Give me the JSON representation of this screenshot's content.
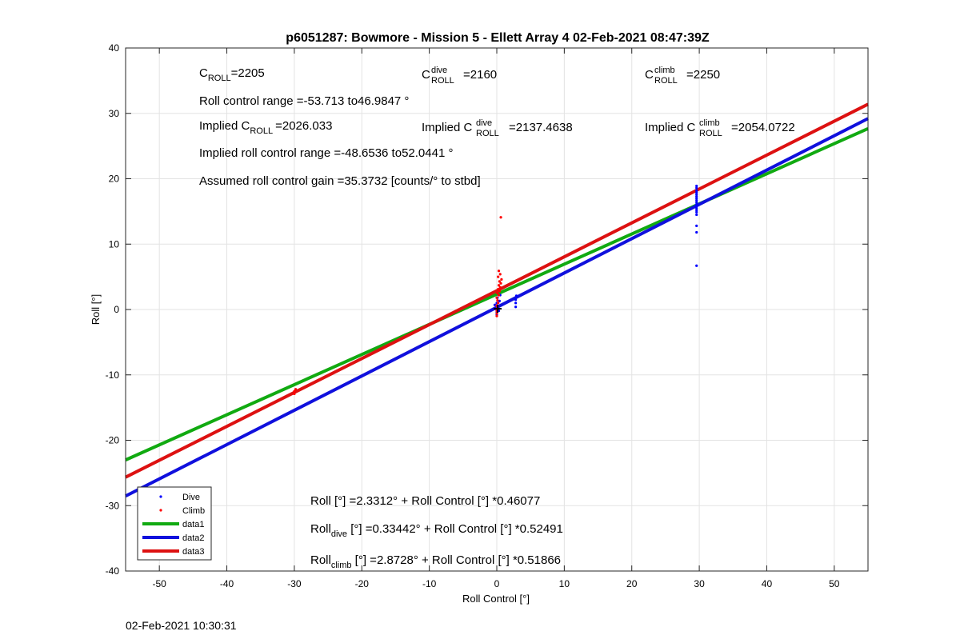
{
  "chart_data": {
    "type": "scatter",
    "title": "p6051287: Bowmore - Mission 5 - Ellett Array 4 02-Feb-2021 08:47:39Z",
    "xlabel": "Roll Control [°]",
    "ylabel": "Roll [°]",
    "xlim": [
      -55,
      55
    ],
    "ylim": [
      -40,
      40
    ],
    "xticks": [
      -50,
      -40,
      -30,
      -20,
      -10,
      0,
      10,
      20,
      30,
      40,
      50
    ],
    "yticks": [
      -40,
      -30,
      -20,
      -10,
      0,
      10,
      20,
      30,
      40
    ],
    "grid": true,
    "legend_position": "bottom-left",
    "legend": [
      "Dive",
      "Climb",
      "data1",
      "data2",
      "data3"
    ],
    "scatter_series": [
      {
        "name": "Dive",
        "color": "#0000ff",
        "points": [
          [
            0,
            -0.8
          ],
          [
            0,
            -0.4
          ],
          [
            0,
            0
          ],
          [
            0,
            0.3
          ],
          [
            0,
            0.6
          ],
          [
            0,
            1.0
          ],
          [
            -0.2,
            0.1
          ],
          [
            0.3,
            -0.2
          ],
          [
            0.2,
            0.4
          ],
          [
            -0.3,
            0.7
          ],
          [
            0.4,
            1.3
          ],
          [
            0.1,
            1.8
          ],
          [
            0.5,
            2.2
          ],
          [
            2.8,
            0.4
          ],
          [
            2.8,
            1.0
          ],
          [
            2.8,
            1.5
          ],
          [
            2.9,
            2.1
          ],
          [
            29.6,
            6.7
          ],
          [
            29.6,
            11.8
          ],
          [
            29.6,
            12.8
          ],
          [
            29.6,
            14.5
          ],
          [
            29.6,
            14.9
          ],
          [
            29.6,
            15.2
          ],
          [
            29.6,
            15.5
          ],
          [
            29.6,
            15.8
          ],
          [
            29.6,
            16.1
          ],
          [
            29.6,
            16.4
          ],
          [
            29.6,
            16.7
          ],
          [
            29.6,
            17.0
          ],
          [
            29.6,
            17.3
          ],
          [
            29.6,
            17.6
          ],
          [
            29.6,
            17.9
          ],
          [
            29.6,
            18.2
          ],
          [
            29.6,
            18.6
          ],
          [
            29.6,
            18.9
          ]
        ]
      },
      {
        "name": "Climb",
        "color": "#ff0000",
        "points": [
          [
            0,
            -1.0
          ],
          [
            0,
            -0.6
          ],
          [
            0,
            -0.2
          ],
          [
            0.1,
            0.2
          ],
          [
            0,
            0.6
          ],
          [
            0.2,
            1.0
          ],
          [
            0.1,
            1.4
          ],
          [
            0,
            1.8
          ],
          [
            0.3,
            2.2
          ],
          [
            0.1,
            2.5
          ],
          [
            0.4,
            2.8
          ],
          [
            0.2,
            3.1
          ],
          [
            0.5,
            3.4
          ],
          [
            0.3,
            3.7
          ],
          [
            0.6,
            4.0
          ],
          [
            0.4,
            4.3
          ],
          [
            0.7,
            4.6
          ],
          [
            0.2,
            5.0
          ],
          [
            0.5,
            5.4
          ],
          [
            0.3,
            5.9
          ],
          [
            0.6,
            14.1
          ],
          [
            -30,
            -12.9
          ],
          [
            -30,
            -12.5
          ],
          [
            -29.8,
            -12.2
          ]
        ]
      }
    ],
    "line_series": [
      {
        "name": "data1",
        "color": "#11aa11",
        "intercept": 2.3312,
        "slope": 0.46077
      },
      {
        "name": "data2",
        "color": "#1010dd",
        "intercept": 0.33442,
        "slope": 0.52491
      },
      {
        "name": "data3",
        "color": "#dd1111",
        "intercept": 2.8728,
        "slope": 0.51866
      }
    ],
    "timestamp": "02-Feb-2021 10:30:31"
  },
  "annotations": {
    "croll_main": "C",
    "croll_main_sub": "ROLL",
    "croll_main_value": "=2205",
    "croll_dive": "C",
    "croll_dive_sup": "dive",
    "croll_dive_sub": "ROLL",
    "croll_dive_value": "=2160",
    "croll_climb": "C",
    "croll_climb_sup": "climb",
    "croll_climb_sub": "ROLL",
    "croll_climb_value": "=2250",
    "roll_range": "Roll control range =-53.713 to46.9847 °",
    "implied_prefix": "Implied C",
    "implied_sub": "ROLL",
    "implied_value": "=2026.033",
    "implied_dive_prefix": "Implied C",
    "implied_dive_sup": "dive",
    "implied_dive_sub": "ROLL",
    "implied_dive_value": "=2137.4638",
    "implied_climb_prefix": "Implied C",
    "implied_climb_sup": "climb",
    "implied_climb_sub": "ROLL",
    "implied_climb_value": "=2054.0722",
    "implied_range": "Implied roll control range =-48.6536 to52.0441 °",
    "gain": "Assumed roll control gain =35.3732 [counts/° to stbd]",
    "fit_main": "Roll [°] =2.3312° + Roll Control [°] *0.46077",
    "fit_dive_prefix": "Roll",
    "fit_dive_sub": "dive",
    "fit_dive_rest": " [°] =0.33442° + Roll Control [°] *0.52491",
    "fit_climb_prefix": "Roll",
    "fit_climb_sub": "climb",
    "fit_climb_rest": " [°] =2.8728° + Roll Control [°] *0.51866"
  }
}
